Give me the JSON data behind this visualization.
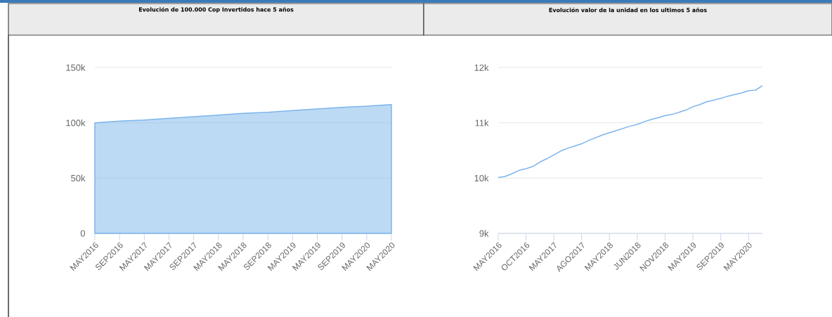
{
  "chart_data": [
    {
      "type": "area",
      "title": "Evolución de 100.000 Cop Invertidos hace 5 años",
      "categories": [
        "MAY2016",
        "SEP2016",
        "MAY2017",
        "MAY2017",
        "SEP2017",
        "MAY2018",
        "MAY2018",
        "SEP2018",
        "MAY2019",
        "MAY2019",
        "SEP2019",
        "MAY2020",
        "MAY2020"
      ],
      "values": [
        100000,
        101500,
        102500,
        104000,
        105500,
        107000,
        108500,
        109500,
        111000,
        112500,
        114000,
        115000,
        116500
      ],
      "color": "#7cb5ec",
      "ylim": [
        0,
        150000
      ],
      "yticks": [
        {
          "value": 0,
          "label": "0"
        },
        {
          "value": 50000,
          "label": "50k"
        },
        {
          "value": 100000,
          "label": "100k"
        },
        {
          "value": 150000,
          "label": "150k"
        }
      ],
      "grid": "y"
    },
    {
      "type": "line",
      "title": "Evolución valor de la unidad en los ultimos 5 años",
      "categories": [
        "MAY2016",
        null,
        null,
        null,
        "OCT2016",
        null,
        null,
        null,
        "MAY2017",
        null,
        null,
        null,
        "AGO2017",
        null,
        null,
        null,
        "MAY2018",
        null,
        null,
        null,
        "JUN2018",
        null,
        null,
        null,
        "NOV2018",
        null,
        null,
        null,
        "MAY2019",
        null,
        null,
        null,
        "SEP2019",
        null,
        null,
        null,
        "MAY2020",
        null,
        null
      ],
      "values": [
        10010,
        10030,
        10080,
        10140,
        10170,
        10210,
        10290,
        10350,
        10420,
        10490,
        10540,
        10580,
        10620,
        10680,
        10730,
        10780,
        10820,
        10860,
        10900,
        10940,
        10970,
        11020,
        11060,
        11090,
        11130,
        11150,
        11190,
        11230,
        11290,
        11330,
        11380,
        11410,
        11440,
        11480,
        11510,
        11540,
        11580,
        11590,
        11670
      ],
      "color": "#7cb5ec",
      "ylim": [
        9000,
        12000
      ],
      "yticks": [
        {
          "value": 9000,
          "label": "9k"
        },
        {
          "value": 10000,
          "label": "10k"
        },
        {
          "value": 11000,
          "label": "11k"
        },
        {
          "value": 12000,
          "label": "12k"
        }
      ],
      "grid": "y"
    }
  ]
}
